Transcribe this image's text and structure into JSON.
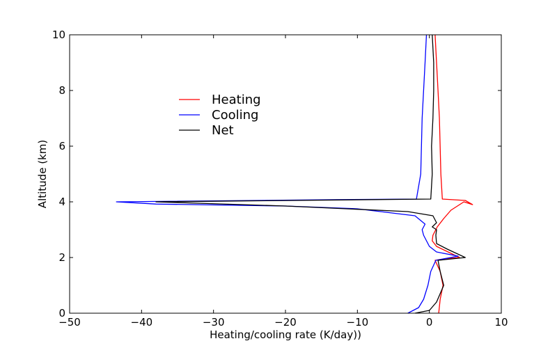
{
  "chart_data": {
    "type": "line",
    "title": "",
    "xlabel": "Heating/cooling rate (K/day))",
    "ylabel": "Altitude (km)",
    "xlim": [
      -50,
      10
    ],
    "ylim": [
      0,
      10
    ],
    "xticks": [
      -50,
      -40,
      -30,
      -20,
      -10,
      0,
      10
    ],
    "xtick_labels": [
      "−50",
      "−40",
      "−30",
      "−20",
      "−10",
      "0",
      "10"
    ],
    "yticks": [
      0,
      2,
      4,
      6,
      8,
      10
    ],
    "ytick_labels": [
      "0",
      "2",
      "4",
      "6",
      "8",
      "10"
    ],
    "grid": false,
    "legend_position": "upper-left",
    "series": [
      {
        "name": "Heating",
        "color": "#ff0000",
        "points": [
          [
            1.3,
            0.0
          ],
          [
            1.5,
            0.5
          ],
          [
            1.9,
            1.0
          ],
          [
            1.5,
            1.5
          ],
          [
            0.8,
            1.9
          ],
          [
            2.0,
            1.95
          ],
          [
            4.2,
            2.0
          ],
          [
            1.0,
            2.4
          ],
          [
            0.4,
            2.6
          ],
          [
            0.5,
            2.8
          ],
          [
            1.1,
            3.1
          ],
          [
            2.0,
            3.4
          ],
          [
            3.0,
            3.7
          ],
          [
            4.8,
            4.0
          ],
          [
            6.0,
            3.9
          ],
          [
            5.0,
            4.05
          ],
          [
            1.8,
            4.1
          ],
          [
            1.6,
            5.0
          ],
          [
            1.4,
            7.0
          ],
          [
            1.2,
            8.0
          ],
          [
            1.0,
            9.0
          ],
          [
            0.8,
            10.0
          ]
        ]
      },
      {
        "name": "Cooling",
        "color": "#0000ff",
        "points": [
          [
            -3.0,
            0.0
          ],
          [
            -1.5,
            0.2
          ],
          [
            -0.8,
            0.5
          ],
          [
            -0.2,
            1.0
          ],
          [
            0.2,
            1.5
          ],
          [
            0.9,
            1.9
          ],
          [
            4.0,
            2.05
          ],
          [
            1.0,
            2.2
          ],
          [
            0.0,
            2.4
          ],
          [
            -0.8,
            2.8
          ],
          [
            -1.0,
            3.0
          ],
          [
            -0.6,
            3.2
          ],
          [
            -2.0,
            3.5
          ],
          [
            -10.0,
            3.75
          ],
          [
            -20.0,
            3.85
          ],
          [
            -38.0,
            3.92
          ],
          [
            -43.5,
            4.0
          ],
          [
            -12.0,
            4.08
          ],
          [
            -1.8,
            4.1
          ],
          [
            -1.2,
            5.0
          ],
          [
            -1.0,
            7.0
          ],
          [
            -0.6,
            9.0
          ],
          [
            -0.4,
            10.0
          ]
        ]
      },
      {
        "name": "Net",
        "color": "#000000",
        "points": [
          [
            -2.0,
            0.0
          ],
          [
            0.0,
            0.1
          ],
          [
            1.0,
            0.4
          ],
          [
            2.0,
            1.0
          ],
          [
            1.5,
            1.5
          ],
          [
            1.2,
            1.9
          ],
          [
            5.0,
            2.0
          ],
          [
            2.5,
            2.3
          ],
          [
            1.0,
            2.5
          ],
          [
            0.9,
            2.8
          ],
          [
            1.0,
            3.0
          ],
          [
            0.4,
            3.1
          ],
          [
            1.0,
            3.25
          ],
          [
            0.5,
            3.5
          ],
          [
            -3.0,
            3.65
          ],
          [
            -20.0,
            3.85
          ],
          [
            -38.0,
            4.0
          ],
          [
            -8.0,
            4.08
          ],
          [
            0.2,
            4.1
          ],
          [
            0.4,
            5.0
          ],
          [
            0.3,
            6.0
          ],
          [
            0.5,
            7.0
          ],
          [
            0.6,
            8.0
          ],
          [
            0.6,
            9.0
          ],
          [
            0.4,
            10.0
          ]
        ]
      }
    ]
  }
}
